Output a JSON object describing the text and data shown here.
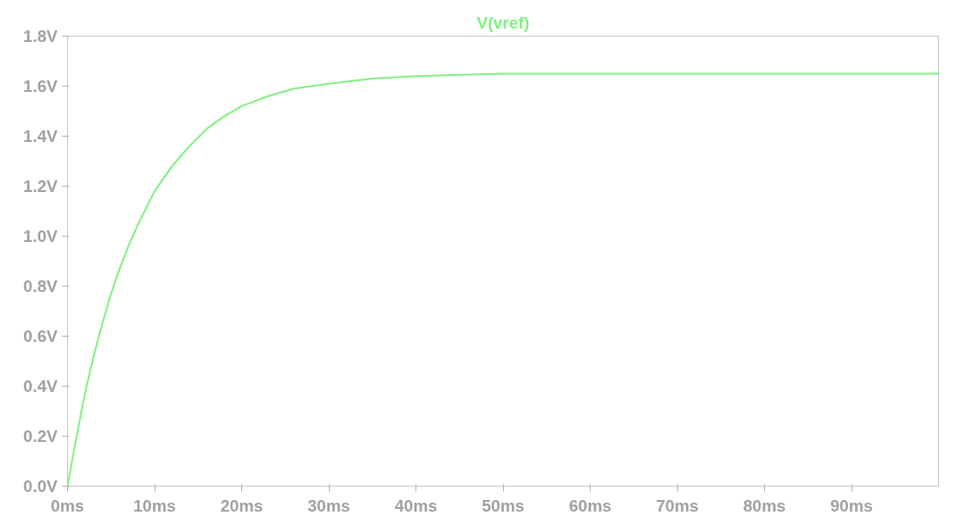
{
  "chart_data": {
    "type": "line",
    "x": [
      0,
      1,
      2,
      3,
      4,
      5,
      6,
      7,
      8,
      10,
      12,
      14,
      16,
      18,
      20,
      23,
      26,
      30,
      35,
      40,
      50,
      60,
      70,
      80,
      90,
      100
    ],
    "series": [
      {
        "name": "V(vref)",
        "color": "#80f080",
        "values": [
          0,
          0.19,
          0.37,
          0.52,
          0.65,
          0.77,
          0.87,
          0.96,
          1.04,
          1.18,
          1.28,
          1.36,
          1.43,
          1.48,
          1.52,
          1.56,
          1.59,
          1.61,
          1.63,
          1.64,
          1.65,
          1.65,
          1.65,
          1.65,
          1.65,
          1.65
        ]
      }
    ],
    "xlim": [
      0,
      100
    ],
    "ylim": [
      0,
      1.8
    ],
    "xticks": [
      {
        "value": 0,
        "label": "0ms"
      },
      {
        "value": 10,
        "label": "10ms"
      },
      {
        "value": 20,
        "label": "20ms"
      },
      {
        "value": 30,
        "label": "30ms"
      },
      {
        "value": 40,
        "label": "40ms"
      },
      {
        "value": 50,
        "label": "50ms"
      },
      {
        "value": 60,
        "label": "60ms"
      },
      {
        "value": 70,
        "label": "70ms"
      },
      {
        "value": 80,
        "label": "80ms"
      },
      {
        "value": 90,
        "label": "90ms"
      }
    ],
    "yticks": [
      {
        "value": 0,
        "label": "0.0V"
      },
      {
        "value": 0.2,
        "label": "0.2V"
      },
      {
        "value": 0.4,
        "label": "0.4V"
      },
      {
        "value": 0.6,
        "label": "0.6V"
      },
      {
        "value": 0.8,
        "label": "0.8V"
      },
      {
        "value": 1.0,
        "label": "1.0V"
      },
      {
        "value": 1.2,
        "label": "1.2V"
      },
      {
        "value": 1.4,
        "label": "1.4V"
      },
      {
        "value": 1.6,
        "label": "1.6V"
      },
      {
        "value": 1.8,
        "label": "1.8V"
      }
    ],
    "grid": false,
    "marker": "none",
    "line_style": "solid"
  }
}
